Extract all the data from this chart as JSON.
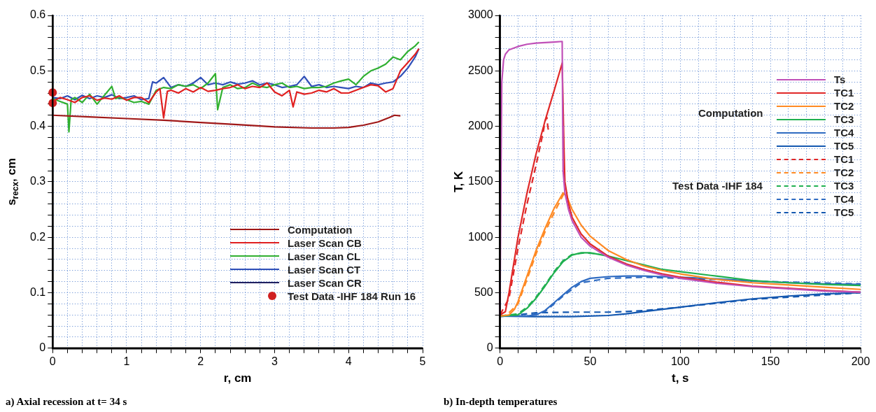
{
  "chart_data": [
    {
      "type": "line",
      "title": "a) Axial recession at t= 34 s",
      "xlabel": "r, cm",
      "ylabel": "s$_{recx}$, cm",
      "xlim": [
        0,
        5
      ],
      "ylim": [
        0,
        0.6
      ],
      "xticks": [
        0,
        {
          "value": 0.2,
          "label": null
        },
        {
          "value": 0.4,
          "label": null
        },
        {
          "value": 0.6,
          "label": null
        },
        {
          "value": 0.8,
          "label": null
        },
        1,
        {
          "value": 1.2,
          "label": null
        },
        {
          "value": 1.4,
          "label": null
        },
        {
          "value": 1.6,
          "label": null
        },
        {
          "value": 1.8,
          "label": null
        },
        2,
        {
          "value": 2.2,
          "label": null
        },
        {
          "value": 2.4,
          "label": null
        },
        {
          "value": 2.6,
          "label": null
        },
        {
          "value": 2.8,
          "label": null
        },
        3,
        {
          "value": 3.2,
          "label": null
        },
        {
          "value": 3.4,
          "label": null
        },
        {
          "value": 3.6,
          "label": null
        },
        {
          "value": 3.8,
          "label": null
        },
        4,
        {
          "value": 4.2,
          "label": null
        },
        {
          "value": 4.4,
          "label": null
        },
        {
          "value": 4.6,
          "label": null
        },
        {
          "value": 4.8,
          "label": null
        },
        5
      ],
      "yticks": [
        0,
        {
          "value": 0.02,
          "label": null
        },
        {
          "value": 0.04,
          "label": null
        },
        {
          "value": 0.06,
          "label": null
        },
        {
          "value": 0.08,
          "label": null
        },
        0.1,
        {
          "value": 0.12,
          "label": null
        },
        {
          "value": 0.14,
          "label": null
        },
        {
          "value": 0.16,
          "label": null
        },
        {
          "value": 0.18,
          "label": null
        },
        0.2,
        {
          "value": 0.22,
          "label": null
        },
        {
          "value": 0.24,
          "label": null
        },
        {
          "value": 0.26,
          "label": null
        },
        {
          "value": 0.28,
          "label": null
        },
        0.3,
        {
          "value": 0.32,
          "label": null
        },
        {
          "value": 0.34,
          "label": null
        },
        {
          "value": 0.36,
          "label": null
        },
        {
          "value": 0.38,
          "label": null
        },
        0.4,
        {
          "value": 0.42,
          "label": null
        },
        {
          "value": 0.44,
          "label": null
        },
        {
          "value": 0.46,
          "label": null
        },
        {
          "value": 0.48,
          "label": null
        },
        0.5,
        {
          "value": 0.52,
          "label": null
        },
        {
          "value": 0.54,
          "label": null
        },
        {
          "value": 0.56,
          "label": null
        },
        {
          "value": 0.58,
          "label": null
        },
        0.6
      ],
      "grid": true,
      "legend": "bottom right",
      "series": [
        {
          "name": "Computation",
          "color": "#a01818",
          "line_style": "solid",
          "x": [
            0,
            0.5,
            1,
            1.5,
            2,
            2.5,
            3,
            3.5,
            3.8,
            4,
            4.2,
            4.4,
            4.55,
            4.62,
            4.7
          ],
          "values": [
            0.42,
            0.417,
            0.414,
            0.411,
            0.407,
            0.403,
            0.399,
            0.397,
            0.397,
            0.398,
            0.402,
            0.408,
            0.416,
            0.42,
            0.419
          ]
        },
        {
          "name": "Laser Scan CB",
          "color": "#e02020",
          "line_style": "solid",
          "x": [
            0,
            0.1,
            0.2,
            0.3,
            0.4,
            0.5,
            0.6,
            0.7,
            0.8,
            0.9,
            1,
            1.1,
            1.2,
            1.3,
            1.4,
            1.45,
            1.5,
            1.55,
            1.6,
            1.7,
            1.8,
            1.9,
            2,
            2.1,
            2.2,
            2.3,
            2.4,
            2.5,
            2.6,
            2.7,
            2.8,
            2.9,
            3,
            3.1,
            3.2,
            3.25,
            3.3,
            3.4,
            3.5,
            3.6,
            3.7,
            3.8,
            3.9,
            4,
            4.1,
            4.2,
            4.3,
            4.4,
            4.5,
            4.6,
            4.7,
            4.8,
            4.9,
            4.95
          ],
          "values": [
            0.445,
            0.452,
            0.448,
            0.443,
            0.452,
            0.455,
            0.447,
            0.451,
            0.449,
            0.455,
            0.447,
            0.452,
            0.452,
            0.443,
            0.462,
            0.468,
            0.415,
            0.463,
            0.465,
            0.46,
            0.468,
            0.462,
            0.47,
            0.463,
            0.465,
            0.468,
            0.47,
            0.475,
            0.468,
            0.472,
            0.47,
            0.478,
            0.462,
            0.455,
            0.465,
            0.435,
            0.462,
            0.458,
            0.46,
            0.465,
            0.462,
            0.468,
            0.46,
            0.46,
            0.465,
            0.47,
            0.475,
            0.473,
            0.462,
            0.468,
            0.5,
            0.515,
            0.53,
            0.54
          ]
        },
        {
          "name": "Laser Scan CL",
          "color": "#30b030",
          "line_style": "solid",
          "x": [
            0,
            0.1,
            0.2,
            0.22,
            0.25,
            0.3,
            0.4,
            0.5,
            0.6,
            0.8,
            0.85,
            0.9,
            1,
            1.1,
            1.2,
            1.3,
            1.4,
            1.5,
            1.6,
            1.7,
            1.8,
            1.9,
            2,
            2.1,
            2.2,
            2.23,
            2.3,
            2.4,
            2.5,
            2.6,
            2.7,
            2.8,
            2.9,
            3,
            3.1,
            3.2,
            3.3,
            3.4,
            3.5,
            3.6,
            3.7,
            3.8,
            3.9,
            4,
            4.1,
            4.2,
            4.3,
            4.4,
            4.5,
            4.6,
            4.7,
            4.8,
            4.9,
            4.95
          ],
          "values": [
            0.45,
            0.445,
            0.44,
            0.39,
            0.448,
            0.452,
            0.443,
            0.458,
            0.44,
            0.472,
            0.45,
            0.452,
            0.448,
            0.443,
            0.445,
            0.44,
            0.465,
            0.47,
            0.468,
            0.475,
            0.472,
            0.475,
            0.468,
            0.478,
            0.495,
            0.43,
            0.47,
            0.475,
            0.468,
            0.47,
            0.478,
            0.472,
            0.47,
            0.475,
            0.478,
            0.47,
            0.472,
            0.468,
            0.47,
            0.47,
            0.472,
            0.478,
            0.482,
            0.485,
            0.475,
            0.49,
            0.5,
            0.505,
            0.512,
            0.525,
            0.52,
            0.535,
            0.545,
            0.552
          ]
        },
        {
          "name": "Laser Scan CT",
          "color": "#3050b8",
          "line_style": "solid",
          "x": [
            0,
            0.1,
            0.2,
            0.3,
            0.4,
            0.5,
            0.6,
            0.7,
            0.8,
            0.9,
            1,
            1.1,
            1.2,
            1.3,
            1.35,
            1.4,
            1.5,
            1.6,
            1.7,
            1.8,
            1.9,
            2,
            2.1,
            2.2,
            2.3,
            2.4,
            2.5,
            2.6,
            2.7,
            2.8,
            2.9,
            3,
            3.1,
            3.2,
            3.3,
            3.4,
            3.5,
            3.6,
            3.7,
            3.8,
            3.9,
            4,
            4.1,
            4.2,
            4.3,
            4.4,
            4.5,
            4.6,
            4.7,
            4.8,
            4.9,
            4.95
          ],
          "values": [
            0.452,
            0.45,
            0.455,
            0.448,
            0.456,
            0.45,
            0.455,
            0.452,
            0.457,
            0.45,
            0.452,
            0.455,
            0.448,
            0.45,
            0.48,
            0.478,
            0.488,
            0.47,
            0.475,
            0.472,
            0.478,
            0.488,
            0.475,
            0.478,
            0.475,
            0.48,
            0.476,
            0.478,
            0.482,
            0.475,
            0.478,
            0.475,
            0.47,
            0.472,
            0.475,
            0.49,
            0.472,
            0.475,
            0.47,
            0.472,
            0.47,
            0.468,
            0.472,
            0.47,
            0.478,
            0.475,
            0.478,
            0.48,
            0.49,
            0.505,
            0.525,
            0.54
          ]
        },
        {
          "name": "Laser Scan CR",
          "color": "#202060",
          "line_style": "solid"
        },
        {
          "name": "Test Data -IHF 184 Run 16",
          "type": "scatter",
          "marker": "circle",
          "color": "#d02020",
          "x": [
            0,
            0
          ],
          "values": [
            0.461,
            0.442
          ]
        }
      ]
    },
    {
      "type": "line",
      "title": "b) In-depth temperatures",
      "xlabel": "t, s",
      "ylabel": "T, K",
      "xlim": [
        0,
        200
      ],
      "ylim": [
        0,
        3000
      ],
      "xticks": [
        0,
        {
          "value": 10,
          "label": null
        },
        {
          "value": 20,
          "label": null
        },
        {
          "value": 30,
          "label": null
        },
        {
          "value": 40,
          "label": null
        },
        50,
        {
          "value": 60,
          "label": null
        },
        {
          "value": 70,
          "label": null
        },
        {
          "value": 80,
          "label": null
        },
        {
          "value": 90,
          "label": null
        },
        100,
        {
          "value": 110,
          "label": null
        },
        {
          "value": 120,
          "label": null
        },
        {
          "value": 130,
          "label": null
        },
        {
          "value": 140,
          "label": null
        },
        150,
        {
          "value": 160,
          "label": null
        },
        {
          "value": 170,
          "label": null
        },
        {
          "value": 180,
          "label": null
        },
        {
          "value": 190,
          "label": null
        },
        200
      ],
      "yticks": [
        0,
        {
          "value": 100,
          "label": null
        },
        {
          "value": 200,
          "label": null
        },
        {
          "value": 300,
          "label": null
        },
        {
          "value": 400,
          "label": null
        },
        500,
        {
          "value": 600,
          "label": null
        },
        {
          "value": 700,
          "label": null
        },
        {
          "value": 800,
          "label": null
        },
        {
          "value": 900,
          "label": null
        },
        1000,
        {
          "value": 1100,
          "label": null
        },
        {
          "value": 1200,
          "label": null
        },
        {
          "value": 1300,
          "label": null
        },
        {
          "value": 1400,
          "label": null
        },
        1500,
        {
          "value": 1600,
          "label": null
        },
        {
          "value": 1700,
          "label": null
        },
        {
          "value": 1800,
          "label": null
        },
        {
          "value": 1900,
          "label": null
        },
        2000,
        {
          "value": 2100,
          "label": null
        },
        {
          "value": 2200,
          "label": null
        },
        {
          "value": 2300,
          "label": null
        },
        {
          "value": 2400,
          "label": null
        },
        2500,
        {
          "value": 2600,
          "label": null
        },
        {
          "value": 2700,
          "label": null
        },
        {
          "value": 2800,
          "label": null
        },
        {
          "value": 2900,
          "label": null
        },
        3000
      ],
      "grid": true,
      "legend": "top right",
      "annotations": [
        "Computation",
        "Test Data -IHF 184"
      ],
      "series": [
        {
          "name": "Ts",
          "color": "#c050b8",
          "line_style": "solid",
          "x": [
            0,
            0.5,
            1,
            2,
            3,
            5,
            10,
            15,
            20,
            25,
            30,
            34.5,
            34.8,
            35,
            36,
            38,
            40,
            45,
            50,
            60,
            70,
            80,
            90,
            100,
            120,
            140,
            160,
            180,
            200
          ],
          "values": [
            300,
            1500,
            2400,
            2600,
            2650,
            2690,
            2720,
            2740,
            2750,
            2755,
            2760,
            2765,
            2000,
            1600,
            1400,
            1250,
            1150,
            1000,
            920,
            820,
            750,
            700,
            660,
            630,
            585,
            555,
            535,
            515,
            505
          ]
        },
        {
          "name": "TC1",
          "color": "#e02828",
          "line_style": "solid",
          "x": [
            0,
            3,
            5,
            10,
            15,
            20,
            25,
            30,
            34.5,
            35.5,
            36,
            38,
            40,
            45,
            50,
            60,
            70,
            80,
            90,
            100,
            120,
            140,
            160,
            180,
            200
          ],
          "values": [
            300,
            330,
            500,
            1000,
            1400,
            1750,
            2050,
            2320,
            2570,
            1800,
            1500,
            1300,
            1180,
            1030,
            940,
            830,
            760,
            710,
            670,
            640,
            595,
            560,
            540,
            520,
            505
          ]
        },
        {
          "name": "TC2",
          "color": "#ff8a24",
          "line_style": "solid",
          "x": [
            0,
            5,
            8,
            10,
            15,
            20,
            25,
            30,
            35,
            37,
            40,
            45,
            50,
            60,
            70,
            80,
            90,
            100,
            120,
            140,
            160,
            180,
            200
          ],
          "values": [
            290,
            300,
            350,
            420,
            650,
            880,
            1080,
            1260,
            1400,
            1370,
            1250,
            1110,
            1010,
            880,
            800,
            740,
            700,
            670,
            620,
            590,
            570,
            550,
            530
          ]
        },
        {
          "name": "TC3",
          "color": "#20b050",
          "line_style": "solid",
          "x": [
            0,
            10,
            15,
            20,
            25,
            30,
            35,
            40,
            45,
            50,
            60,
            70,
            80,
            90,
            100,
            120,
            140,
            160,
            180,
            200
          ],
          "values": [
            290,
            300,
            360,
            450,
            560,
            680,
            780,
            840,
            860,
            860,
            830,
            790,
            750,
            710,
            690,
            650,
            610,
            590,
            575,
            565
          ]
        },
        {
          "name": "TC4",
          "color": "#2e6bc2",
          "line_style": "solid",
          "x": [
            0,
            15,
            20,
            25,
            30,
            35,
            40,
            45,
            50,
            60,
            70,
            80,
            90,
            100,
            120,
            140,
            160,
            180,
            200
          ],
          "values": [
            290,
            290,
            300,
            340,
            410,
            480,
            550,
            600,
            630,
            645,
            650,
            650,
            645,
            640,
            625,
            605,
            590,
            580,
            575
          ]
        },
        {
          "name": "TC5",
          "color": "#1458b0",
          "line_style": "solid",
          "x": [
            0,
            20,
            40,
            60,
            70,
            80,
            100,
            120,
            140,
            160,
            180,
            200
          ],
          "values": [
            290,
            285,
            285,
            295,
            310,
            330,
            370,
            410,
            445,
            470,
            490,
            500
          ]
        },
        {
          "name": "TC1",
          "color": "#e02828",
          "line_style": "dashed",
          "x": [
            0,
            5,
            10,
            15,
            20,
            22,
            24,
            25,
            26,
            26.5,
            27
          ],
          "values": [
            300,
            450,
            900,
            1300,
            1650,
            1800,
            1950,
            2050,
            2080,
            2000,
            1950
          ]
        },
        {
          "name": "TC2",
          "color": "#ff8a24",
          "line_style": "dashed",
          "x": [
            5,
            10,
            15,
            20,
            25,
            30,
            35,
            37
          ],
          "values": [
            320,
            400,
            620,
            850,
            1050,
            1220,
            1380,
            1400
          ]
        },
        {
          "name": "TC3",
          "color": "#20b050",
          "line_style": "dashed",
          "x": [
            0,
            10,
            15,
            20,
            25,
            30,
            35,
            40,
            47,
            55
          ],
          "values": [
            290,
            310,
            370,
            460,
            570,
            690,
            790,
            845,
            860,
            850
          ]
        },
        {
          "name": "TC4",
          "color": "#2e6bc2",
          "line_style": "dashed",
          "x": [
            0,
            15,
            25,
            35,
            45,
            60,
            80,
            100,
            150,
            200
          ],
          "values": [
            290,
            290,
            330,
            470,
            590,
            630,
            640,
            630,
            600,
            580
          ]
        },
        {
          "name": "TC5",
          "color": "#1458b0",
          "line_style": "dashed",
          "x": [
            0,
            10,
            20,
            40,
            60,
            70,
            80,
            100,
            140,
            200
          ],
          "values": [
            285,
            300,
            320,
            325,
            325,
            330,
            340,
            370,
            440,
            500
          ]
        }
      ]
    }
  ]
}
